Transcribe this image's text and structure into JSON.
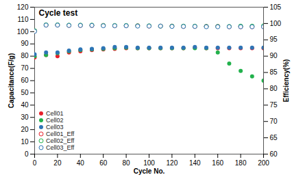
{
  "chart_data": {
    "type": "scatter",
    "title": "Cycle test",
    "x_label": "Cycle No.",
    "y_label": "Capacitance(F/g)",
    "y2_label": "Efficiency(%)",
    "x": [
      0,
      10,
      20,
      30,
      40,
      50,
      60,
      70,
      80,
      90,
      100,
      110,
      120,
      130,
      140,
      150,
      160,
      170,
      180,
      190,
      200
    ],
    "xlim": [
      0,
      200
    ],
    "xticks": [
      0,
      20,
      40,
      60,
      80,
      100,
      120,
      140,
      160,
      180,
      200
    ],
    "ylim": [
      0,
      120
    ],
    "yticks": [
      0,
      10,
      20,
      30,
      40,
      50,
      60,
      70,
      80,
      90,
      100,
      110,
      120
    ],
    "y2lim": [
      60,
      105
    ],
    "y2ticks": [
      60,
      65,
      70,
      75,
      80,
      85,
      90,
      95,
      100,
      105
    ],
    "grid": false,
    "legend": "lower left",
    "series": [
      {
        "name": "Cell01",
        "color": "#e8202a",
        "marker": "circle",
        "values": [
          79,
          81,
          80,
          83,
          84,
          85,
          85.5,
          86,
          86.5,
          86.5,
          86.5,
          86.5,
          86.5,
          86.5,
          87,
          86.5,
          86.5,
          86.5,
          86.5,
          86.5,
          86.5
        ]
      },
      {
        "name": "Cell02",
        "color": "#22b14c",
        "marker": "circle",
        "values": [
          80,
          81,
          82.5,
          84,
          85,
          85.5,
          86,
          86.5,
          87,
          86.5,
          86.5,
          86.5,
          86.5,
          86.5,
          86.5,
          86.5,
          83,
          74,
          68,
          63.5,
          60
        ]
      },
      {
        "name": "Cell03",
        "color": "#2e75b6",
        "marker": "circle",
        "values": [
          81.5,
          83,
          83,
          84.5,
          85.5,
          86,
          86.5,
          87.5,
          87.5,
          87,
          87,
          87,
          87,
          87,
          87.5,
          87,
          87,
          87,
          87,
          87,
          87
        ]
      },
      {
        "name": "Cell01_Eff",
        "color": "#e8202a",
        "marker": "open_circle",
        "axis": "y2",
        "values": [
          97.7,
          99.5,
          99.5,
          99.4,
          99.4,
          99.4,
          99.4,
          99.3,
          99.3,
          99.3,
          99.2,
          99.2,
          99.2,
          99.1,
          99.1,
          99.1,
          99.1,
          99.0,
          99.0,
          99.0,
          99.0
        ]
      },
      {
        "name": "Cell02_Eff",
        "color": "#22b14c",
        "marker": "open_circle",
        "axis": "y2",
        "values": [
          97.8,
          99.6,
          99.6,
          99.5,
          99.5,
          99.5,
          99.4,
          99.4,
          99.4,
          99.3,
          99.3,
          99.2,
          99.2,
          99.2,
          99.2,
          99.1,
          99.1,
          99.1,
          99.2,
          99.2,
          99.3
        ]
      },
      {
        "name": "Cell03_Eff",
        "color": "#2e75b6",
        "marker": "open_circle",
        "axis": "y2",
        "values": [
          97.6,
          99.5,
          99.5,
          99.4,
          99.4,
          99.4,
          99.3,
          99.3,
          99.3,
          99.2,
          99.2,
          99.2,
          99.1,
          99.1,
          99.1,
          99.0,
          99.0,
          99.0,
          99.0,
          99.0,
          99.0
        ]
      }
    ]
  }
}
